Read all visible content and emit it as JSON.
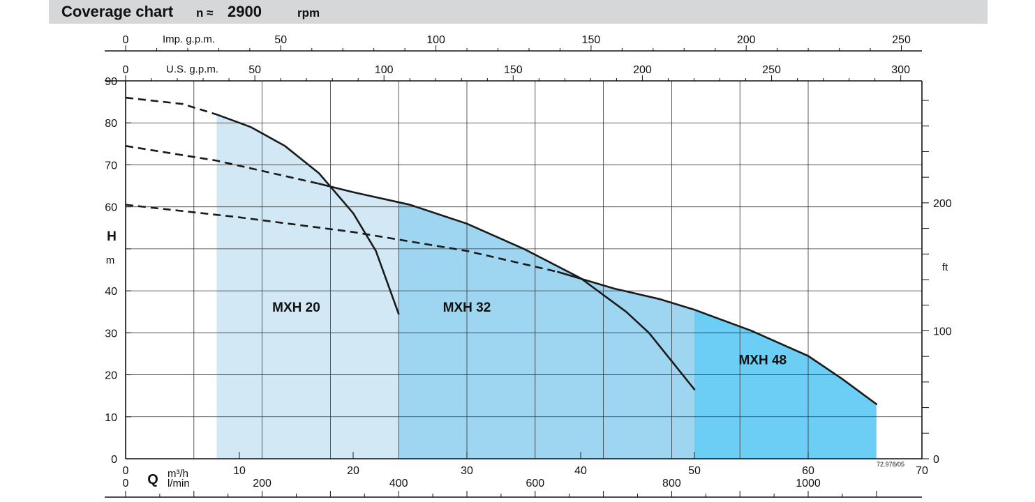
{
  "header": {
    "title": "Coverage chart",
    "speed_prefix": "n ≈",
    "speed_value": "2900",
    "speed_unit": "rpm"
  },
  "chart_data": {
    "type": "area",
    "title": "Coverage chart n ≈ 2900 rpm",
    "x_axis": {
      "primary": {
        "unit_label": "m³/h",
        "range": [
          0,
          70
        ],
        "ticks": [
          0,
          10,
          20,
          30,
          40,
          50,
          60,
          70
        ]
      },
      "secondary_lmin": {
        "unit_label": "l/min",
        "ticks": [
          0,
          200,
          400,
          600,
          800,
          1000
        ]
      },
      "imp_gpm": {
        "unit_label": "Imp. g.p.m.",
        "ticks": [
          0,
          50,
          100,
          150,
          200,
          250
        ]
      },
      "us_gpm": {
        "unit_label": "U.S. g.p.m.",
        "ticks": [
          0,
          50,
          100,
          150,
          200,
          250,
          300
        ]
      },
      "q_symbol": "Q"
    },
    "y_axis": {
      "symbol": "H",
      "unit_label": "m",
      "range": [
        0,
        90
      ],
      "ticks": [
        0,
        10,
        20,
        30,
        40,
        50,
        60,
        70,
        80,
        90
      ],
      "tick_labels": [
        "0",
        "10",
        "20",
        "30",
        "40",
        "",
        "60",
        "70",
        "80",
        "90"
      ]
    },
    "y_axis_right": {
      "unit_label": "ft",
      "ticks": [
        0,
        100,
        200
      ]
    },
    "grid": true,
    "reference_code": "72.978/05",
    "colors": {
      "MXH 20": "#d2e8f5",
      "MXH 32": "#9ed6f1",
      "MXH 48": "#6ccdf5"
    },
    "series": [
      {
        "name": "MXH 20",
        "label_at": [
          15,
          35
        ],
        "dashed": [
          [
            0,
            86
          ],
          [
            5,
            84.5
          ],
          [
            8,
            82
          ]
        ],
        "curve": [
          [
            8,
            82
          ],
          [
            11,
            79
          ],
          [
            14,
            74.5
          ],
          [
            17,
            68
          ],
          [
            20,
            58.5
          ],
          [
            22,
            49.5
          ],
          [
            24,
            34.5
          ]
        ],
        "fill_range": [
          8,
          24
        ]
      },
      {
        "name": "MXH 32",
        "label_at": [
          30,
          35
        ],
        "dashed": [
          [
            0,
            74.5
          ],
          [
            8,
            71
          ],
          [
            17,
            65.5
          ]
        ],
        "curve": [
          [
            17,
            65.5
          ],
          [
            20,
            63.5
          ],
          [
            25,
            60.5
          ],
          [
            30,
            56
          ],
          [
            35,
            50
          ],
          [
            40,
            43
          ],
          [
            44,
            35
          ],
          [
            46,
            30
          ],
          [
            50,
            16.5
          ]
        ],
        "fill_range": [
          24,
          50
        ]
      },
      {
        "name": "MXH 48",
        "label_at": [
          56,
          22.5
        ],
        "dashed": [
          [
            0,
            60.5
          ],
          [
            10,
            57.5
          ],
          [
            20,
            54
          ],
          [
            30,
            49.5
          ],
          [
            38,
            44.5
          ]
        ],
        "curve": [
          [
            38,
            44.5
          ],
          [
            43,
            40.5
          ],
          [
            47,
            38
          ],
          [
            50,
            35.5
          ],
          [
            55,
            30.5
          ],
          [
            60,
            24.5
          ],
          [
            63,
            19
          ],
          [
            66,
            13
          ]
        ],
        "fill_range": [
          50,
          66
        ]
      }
    ]
  }
}
